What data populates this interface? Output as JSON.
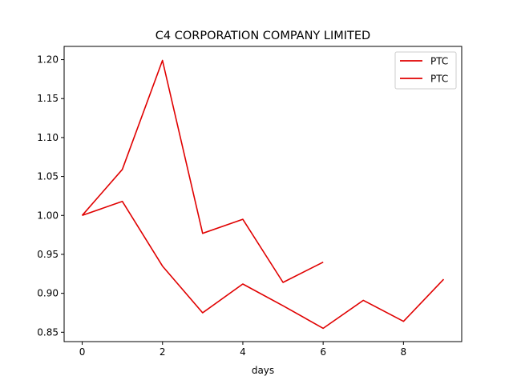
{
  "chart_data": {
    "type": "line",
    "title": "C4 CORPORATION COMPANY LIMITED",
    "xlabel": "days",
    "ylabel": "",
    "xlim": [
      -0.45,
      9.45
    ],
    "ylim": [
      0.838,
      1.217
    ],
    "xticks": [
      0,
      2,
      4,
      6,
      8
    ],
    "xtick_labels": [
      "0",
      "2",
      "4",
      "6",
      "8"
    ],
    "yticks": [
      0.85,
      0.9,
      0.95,
      1.0,
      1.05,
      1.1,
      1.15,
      1.2
    ],
    "ytick_labels": [
      "0.85",
      "0.90",
      "0.95",
      "1.00",
      "1.05",
      "1.10",
      "1.15",
      "1.20"
    ],
    "grid": false,
    "legend_position": "top-right",
    "series": [
      {
        "name": "PTC",
        "color": "#e00000",
        "x": [
          0,
          1,
          2,
          3,
          4,
          5,
          6
        ],
        "y": [
          1.0,
          1.059,
          1.199,
          0.977,
          0.995,
          0.914,
          0.94
        ]
      },
      {
        "name": "PTC",
        "color": "#e00000",
        "x": [
          0,
          1,
          2,
          3,
          4,
          5,
          6,
          7,
          8,
          9
        ],
        "y": [
          1.0,
          1.018,
          0.935,
          0.875,
          0.912,
          0.884,
          0.855,
          0.891,
          0.864,
          0.918
        ]
      }
    ]
  }
}
